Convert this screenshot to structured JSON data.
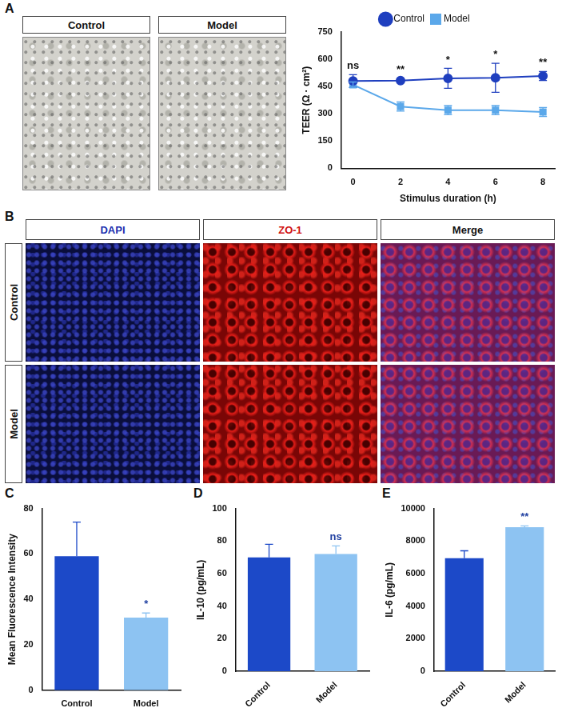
{
  "panel_A": {
    "letter": "A",
    "image_titles": [
      "Control",
      "Model"
    ]
  },
  "panel_B": {
    "letter": "B",
    "columns": [
      "DAPI",
      "ZO-1",
      "Merge"
    ],
    "rows": [
      "Control",
      "Model"
    ]
  },
  "chart_data": [
    {
      "type": "line",
      "x": [
        0,
        2,
        4,
        6,
        8
      ],
      "xlabel": "Stimulus duration (h)",
      "ylabel": "TEER (Ω · cm²)",
      "xlim": [
        -0.5,
        8.5
      ],
      "xticks": [
        0,
        2,
        4,
        6,
        8
      ],
      "ylim": [
        0,
        750
      ],
      "yticks": [
        0,
        150,
        300,
        450,
        600,
        750
      ],
      "grid": false,
      "legend": "top",
      "series": [
        {
          "name": "Control",
          "color": "#1f3fbf",
          "marker": "circle",
          "values": [
            480,
            483,
            495,
            498,
            508
          ],
          "errors": [
            35,
            10,
            55,
            80,
            25
          ]
        },
        {
          "name": "Model",
          "color": "#5ba8ea",
          "marker": "square",
          "values": [
            460,
            340,
            320,
            320,
            310
          ],
          "errors": [
            15,
            25,
            25,
            25,
            25
          ]
        }
      ],
      "annotations": [
        "ns",
        "**",
        "*",
        "*",
        "**"
      ]
    },
    {
      "panel": "C",
      "type": "bar",
      "categories": [
        "Control",
        "Model"
      ],
      "values": [
        59,
        32
      ],
      "errors": [
        15,
        2
      ],
      "colors": [
        "#1c49c8",
        "#8dc3f2"
      ],
      "ylabel": "Mean Fluorescence Intensity",
      "ylim": [
        0,
        80
      ],
      "yticks": [
        0,
        20,
        40,
        60,
        80
      ],
      "grid": false,
      "annotations": [
        null,
        "*"
      ]
    },
    {
      "panel": "D",
      "type": "bar",
      "categories": [
        "Control",
        "Model"
      ],
      "values": [
        70,
        72
      ],
      "errors": [
        8,
        5
      ],
      "colors": [
        "#1c49c8",
        "#8dc3f2"
      ],
      "ylabel": "IL-10 (pg/mL)",
      "ylim": [
        0,
        100
      ],
      "yticks": [
        0,
        20,
        40,
        60,
        80,
        100
      ],
      "grid": false,
      "annotations": [
        null,
        "ns"
      ]
    },
    {
      "panel": "E",
      "type": "bar",
      "categories": [
        "Control",
        "Model"
      ],
      "values": [
        6950,
        8850
      ],
      "errors": [
        450,
        80
      ],
      "colors": [
        "#1c49c8",
        "#8dc3f2"
      ],
      "ylabel": "IL-6 (pg/mL)",
      "ylim": [
        0,
        10000
      ],
      "yticks": [
        0,
        2000,
        4000,
        6000,
        8000,
        10000
      ],
      "grid": false,
      "annotations": [
        null,
        "**"
      ]
    }
  ]
}
